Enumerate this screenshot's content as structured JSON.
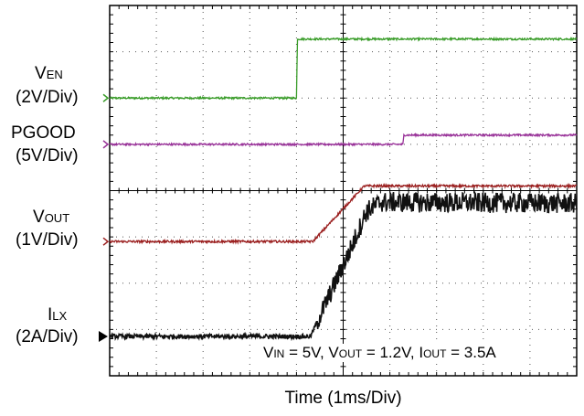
{
  "chart_data": {
    "type": "line",
    "title": "",
    "xlabel": "Time (1ms/Div)",
    "x_divisions": 10,
    "y_divisions": 8,
    "x_unit_per_div_ms": 1,
    "grid": true,
    "annotation": {
      "parts": [
        {
          "text": "V",
          "sub": "IN",
          "rest": " = 5V, "
        },
        {
          "text": "V",
          "sub": "OUT",
          "rest": " = 1.2V, "
        },
        {
          "text": "I",
          "sub": "OUT",
          "rest": " = 3.5A"
        }
      ]
    },
    "series": [
      {
        "name": "VEN",
        "label_main": "V",
        "label_sub": "EN",
        "scale": "(2V/Div)",
        "color": "#3a9d2a",
        "ground_div": 6.0,
        "noise": 0.02,
        "points": [
          [
            0,
            0.0
          ],
          [
            4.0,
            0.0
          ],
          [
            4.02,
            2.55
          ],
          [
            10,
            2.55
          ]
        ]
      },
      {
        "name": "PGOOD",
        "label_main": "PGOOD",
        "label_sub": "",
        "scale": "(5V/Div)",
        "color": "#993399",
        "ground_div": 5.0,
        "noise": 0.02,
        "points": [
          [
            0,
            0.0
          ],
          [
            6.28,
            0.0
          ],
          [
            6.3,
            1.0
          ],
          [
            10,
            1.0
          ]
        ]
      },
      {
        "name": "VOUT",
        "label_main": "V",
        "label_sub": "OUT",
        "scale": "(1V/Div)",
        "color": "#9b2020",
        "ground_div": 2.9,
        "noise": 0.025,
        "points": [
          [
            0,
            0.0
          ],
          [
            4.35,
            0.0
          ],
          [
            5.45,
            1.2
          ],
          [
            10,
            1.2
          ]
        ]
      },
      {
        "name": "ILX",
        "label_main": "I",
        "label_sub": "LX",
        "scale": "(2A/Div)",
        "color": "#111111",
        "ground_div": 0.85,
        "noise": 0.05,
        "noise_rising": 0.22,
        "points": [
          [
            0,
            0.0
          ],
          [
            4.3,
            0.0
          ],
          [
            5.1,
            3.5
          ],
          [
            5.5,
            5.4
          ],
          [
            5.8,
            5.8
          ],
          [
            10,
            5.75
          ]
        ]
      }
    ]
  }
}
